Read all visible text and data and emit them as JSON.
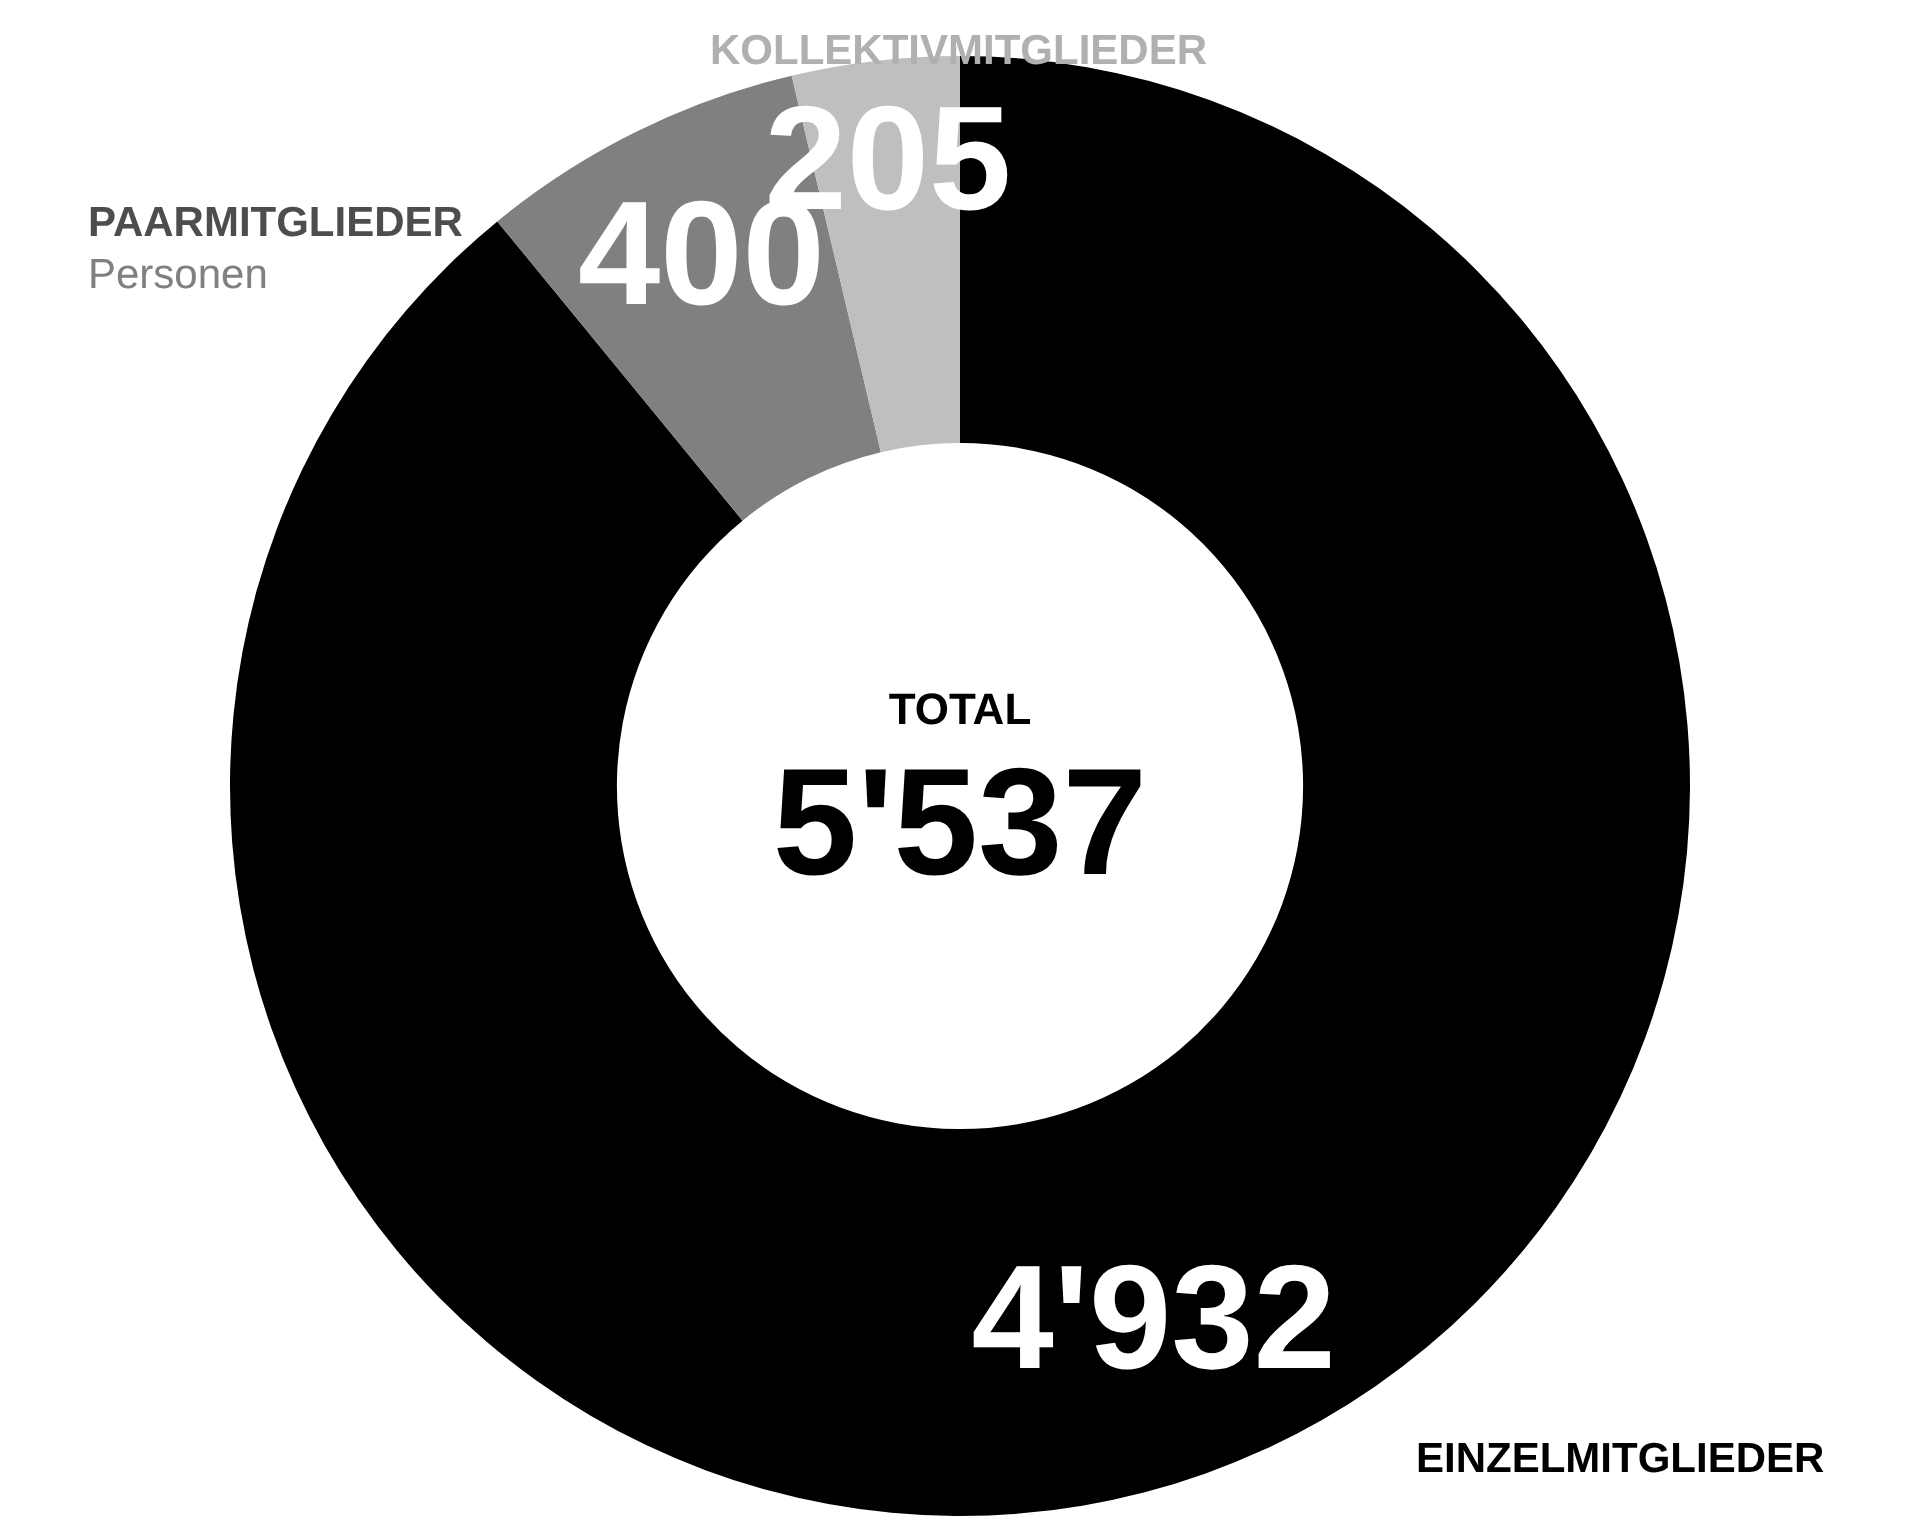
{
  "chart_data": {
    "type": "donut",
    "categories": [
      "EINZELMITGLIEDER",
      "PAARMITGLIEDER",
      "KOLLEKTIVMITGLIEDER"
    ],
    "values": [
      4932,
      400,
      205
    ],
    "colors": [
      "#000000",
      "#808080",
      "#bfbfbf"
    ],
    "value_labels": [
      "4'932",
      "400",
      "205"
    ],
    "annotations": [
      "Personen",
      "TOTAL",
      "5'537"
    ],
    "legend": false
  }
}
